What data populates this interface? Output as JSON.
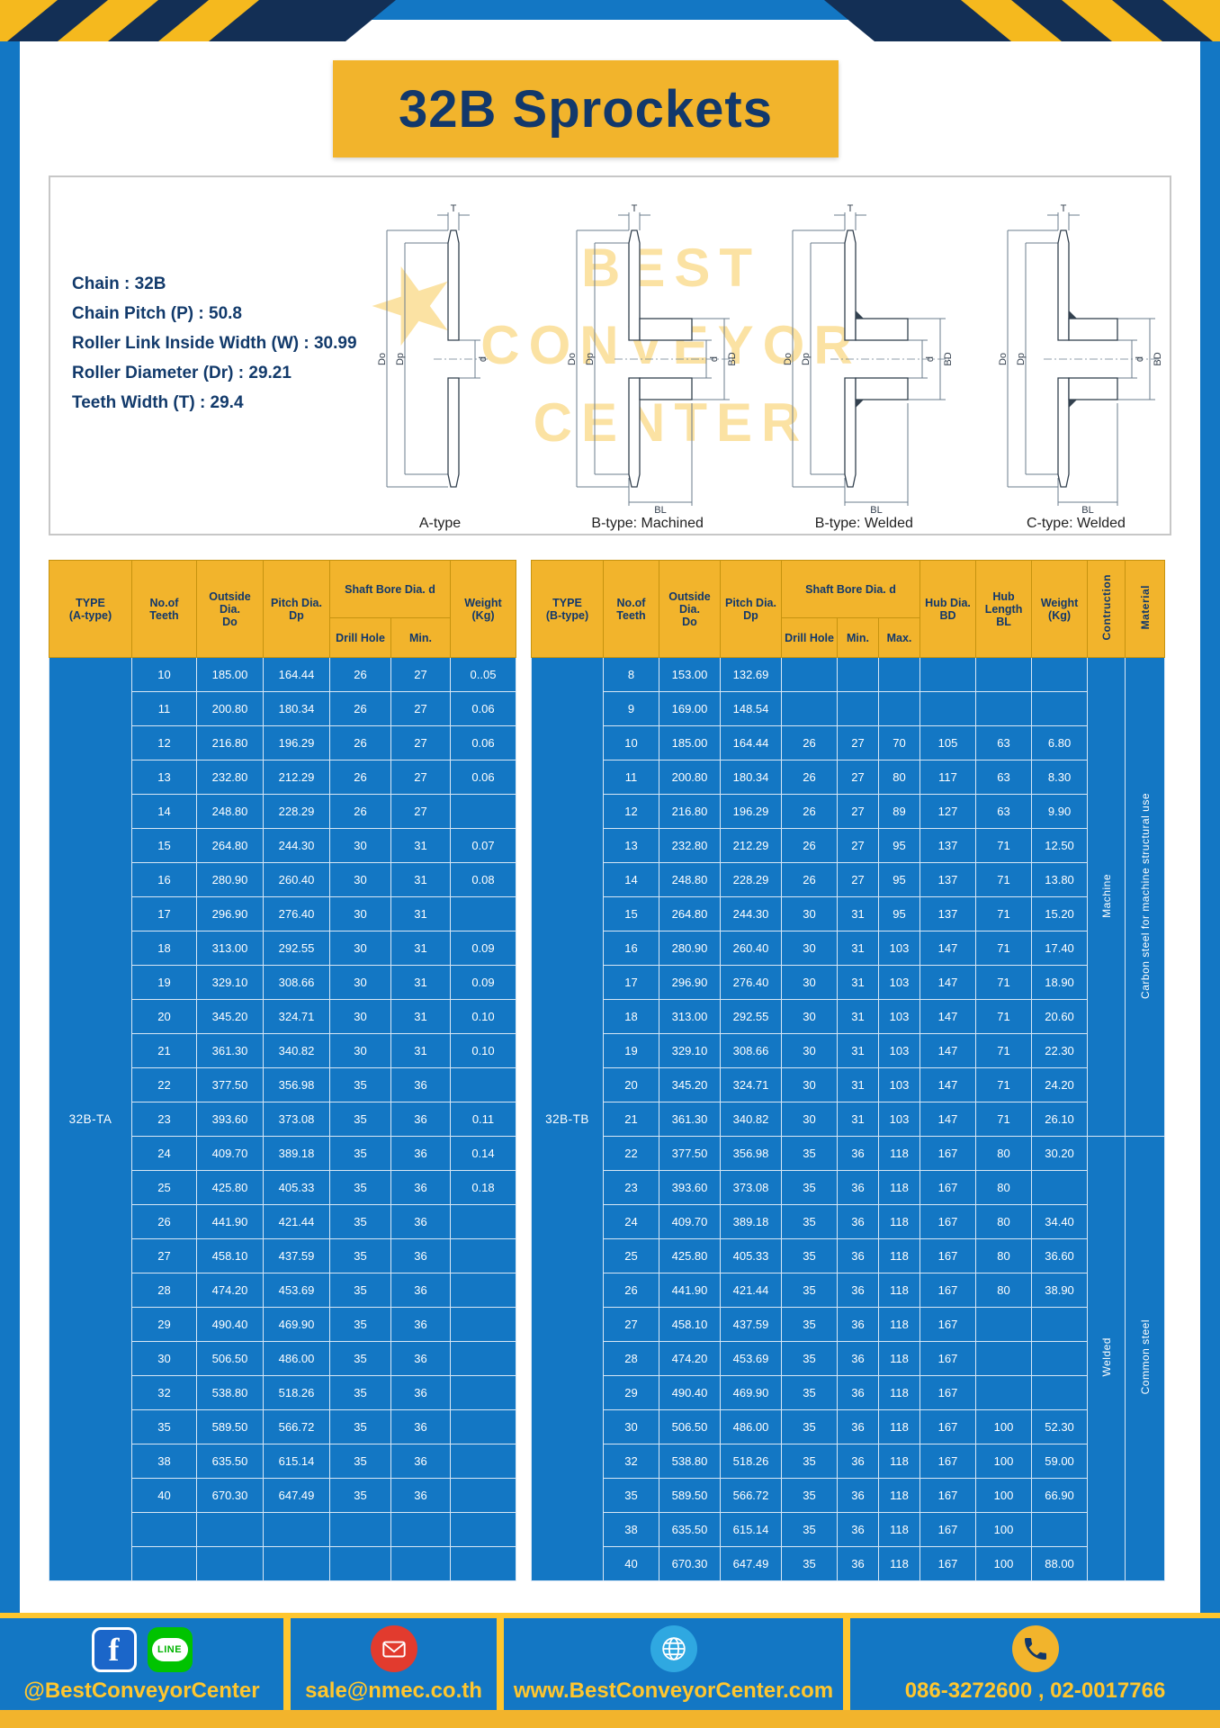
{
  "page": {
    "title": "32B Sprockets"
  },
  "specs": {
    "lines": [
      "Chain : 32B",
      "Chain Pitch (P) : 50.8",
      "Roller Link Inside Width (W) : 30.99",
      "Roller Diameter (Dr) : 29.21",
      "Teeth Width (T) : 29.4"
    ]
  },
  "watermark": {
    "star": "★",
    "line1": "BEST",
    "line2": "CONVEYOR",
    "line3": "CENTER"
  },
  "dim_labels": {
    "T": "T",
    "Do": "Do",
    "Dp": "Dp",
    "d": "d",
    "BD": "BD",
    "BL": "BL"
  },
  "diagrams": {
    "captions": [
      "A-type",
      "B-type: Machined",
      "B-type: Welded",
      "C-type: Welded"
    ]
  },
  "table_a": {
    "headers": {
      "type": "TYPE\n(A-type)",
      "teeth": "No.of\nTeeth",
      "outside": "Outside\nDia.\nDo",
      "pitch": "Pitch Dia.\nDp",
      "shaft": "Shaft Bore Dia. d",
      "drill": "Drill Hole",
      "min": "Min.",
      "weight": "Weight\n(Kg)"
    },
    "type_label": "32B-TA",
    "rows": [
      [
        "10",
        "185.00",
        "164.44",
        "26",
        "27",
        "0..05"
      ],
      [
        "11",
        "200.80",
        "180.34",
        "26",
        "27",
        "0.06"
      ],
      [
        "12",
        "216.80",
        "196.29",
        "26",
        "27",
        "0.06"
      ],
      [
        "13",
        "232.80",
        "212.29",
        "26",
        "27",
        "0.06"
      ],
      [
        "14",
        "248.80",
        "228.29",
        "26",
        "27",
        ""
      ],
      [
        "15",
        "264.80",
        "244.30",
        "30",
        "31",
        "0.07"
      ],
      [
        "16",
        "280.90",
        "260.40",
        "30",
        "31",
        "0.08"
      ],
      [
        "17",
        "296.90",
        "276.40",
        "30",
        "31",
        ""
      ],
      [
        "18",
        "313.00",
        "292.55",
        "30",
        "31",
        "0.09"
      ],
      [
        "19",
        "329.10",
        "308.66",
        "30",
        "31",
        "0.09"
      ],
      [
        "20",
        "345.20",
        "324.71",
        "30",
        "31",
        "0.10"
      ],
      [
        "21",
        "361.30",
        "340.82",
        "30",
        "31",
        "0.10"
      ],
      [
        "22",
        "377.50",
        "356.98",
        "35",
        "36",
        ""
      ],
      [
        "23",
        "393.60",
        "373.08",
        "35",
        "36",
        "0.11"
      ],
      [
        "24",
        "409.70",
        "389.18",
        "35",
        "36",
        "0.14"
      ],
      [
        "25",
        "425.80",
        "405.33",
        "35",
        "36",
        "0.18"
      ],
      [
        "26",
        "441.90",
        "421.44",
        "35",
        "36",
        ""
      ],
      [
        "27",
        "458.10",
        "437.59",
        "35",
        "36",
        ""
      ],
      [
        "28",
        "474.20",
        "453.69",
        "35",
        "36",
        ""
      ],
      [
        "29",
        "490.40",
        "469.90",
        "35",
        "36",
        ""
      ],
      [
        "30",
        "506.50",
        "486.00",
        "35",
        "36",
        ""
      ],
      [
        "32",
        "538.80",
        "518.26",
        "35",
        "36",
        ""
      ],
      [
        "35",
        "589.50",
        "566.72",
        "35",
        "36",
        ""
      ],
      [
        "38",
        "635.50",
        "615.14",
        "35",
        "36",
        ""
      ],
      [
        "40",
        "670.30",
        "647.49",
        "35",
        "36",
        ""
      ],
      [
        "",
        "",
        "",
        "",
        "",
        ""
      ],
      [
        "",
        "",
        "",
        "",
        "",
        ""
      ]
    ],
    "side_cells": []
  },
  "table_b": {
    "headers": {
      "type": "TYPE\n(B-type)",
      "teeth": "No.of\nTeeth",
      "outside": "Outside\nDia.\nDo",
      "pitch": "Pitch Dia.\nDp",
      "shaft": "Shaft Bore Dia. d",
      "drill": "Drill Hole",
      "min": "Min.",
      "max": "Max.",
      "hub_dia": "Hub Dia.\nBD",
      "hub_len": "Hub\nLength\nBL",
      "weight": "Weight\n(Kg)",
      "construction": "Contruction",
      "material": "Material"
    },
    "type_label": "32B-TB",
    "rows": [
      [
        "8",
        "153.00",
        "132.69",
        "",
        "",
        "",
        "",
        "",
        ""
      ],
      [
        "9",
        "169.00",
        "148.54",
        "",
        "",
        "",
        "",
        "",
        ""
      ],
      [
        "10",
        "185.00",
        "164.44",
        "26",
        "27",
        "70",
        "105",
        "63",
        "6.80"
      ],
      [
        "11",
        "200.80",
        "180.34",
        "26",
        "27",
        "80",
        "117",
        "63",
        "8.30"
      ],
      [
        "12",
        "216.80",
        "196.29",
        "26",
        "27",
        "89",
        "127",
        "63",
        "9.90"
      ],
      [
        "13",
        "232.80",
        "212.29",
        "26",
        "27",
        "95",
        "137",
        "71",
        "12.50"
      ],
      [
        "14",
        "248.80",
        "228.29",
        "26",
        "27",
        "95",
        "137",
        "71",
        "13.80"
      ],
      [
        "15",
        "264.80",
        "244.30",
        "30",
        "31",
        "95",
        "137",
        "71",
        "15.20"
      ],
      [
        "16",
        "280.90",
        "260.40",
        "30",
        "31",
        "103",
        "147",
        "71",
        "17.40"
      ],
      [
        "17",
        "296.90",
        "276.40",
        "30",
        "31",
        "103",
        "147",
        "71",
        "18.90"
      ],
      [
        "18",
        "313.00",
        "292.55",
        "30",
        "31",
        "103",
        "147",
        "71",
        "20.60"
      ],
      [
        "19",
        "329.10",
        "308.66",
        "30",
        "31",
        "103",
        "147",
        "71",
        "22.30"
      ],
      [
        "20",
        "345.20",
        "324.71",
        "30",
        "31",
        "103",
        "147",
        "71",
        "24.20"
      ],
      [
        "21",
        "361.30",
        "340.82",
        "30",
        "31",
        "103",
        "147",
        "71",
        "26.10"
      ],
      [
        "22",
        "377.50",
        "356.98",
        "35",
        "36",
        "118",
        "167",
        "80",
        "30.20"
      ],
      [
        "23",
        "393.60",
        "373.08",
        "35",
        "36",
        "118",
        "167",
        "80",
        ""
      ],
      [
        "24",
        "409.70",
        "389.18",
        "35",
        "36",
        "118",
        "167",
        "80",
        "34.40"
      ],
      [
        "25",
        "425.80",
        "405.33",
        "35",
        "36",
        "118",
        "167",
        "80",
        "36.60"
      ],
      [
        "26",
        "441.90",
        "421.44",
        "35",
        "36",
        "118",
        "167",
        "80",
        "38.90"
      ],
      [
        "27",
        "458.10",
        "437.59",
        "35",
        "36",
        "118",
        "167",
        "",
        ""
      ],
      [
        "28",
        "474.20",
        "453.69",
        "35",
        "36",
        "118",
        "167",
        "",
        ""
      ],
      [
        "29",
        "490.40",
        "469.90",
        "35",
        "36",
        "118",
        "167",
        "",
        ""
      ],
      [
        "30",
        "506.50",
        "486.00",
        "35",
        "36",
        "118",
        "167",
        "100",
        "52.30"
      ],
      [
        "32",
        "538.80",
        "518.26",
        "35",
        "36",
        "118",
        "167",
        "100",
        "59.00"
      ],
      [
        "35",
        "589.50",
        "566.72",
        "35",
        "36",
        "118",
        "167",
        "100",
        "66.90"
      ],
      [
        "38",
        "635.50",
        "615.14",
        "35",
        "36",
        "118",
        "167",
        "100",
        ""
      ],
      [
        "40",
        "670.30",
        "647.49",
        "35",
        "36",
        "118",
        "167",
        "100",
        "88.00"
      ]
    ],
    "side_cells": [
      {
        "name": "construction-machine-cell",
        "text": "Machine",
        "from": 0,
        "span": 14
      },
      {
        "name": "material-carbon-steel-cell",
        "text": "Carbon steel for machine structural use",
        "from": 0,
        "span": 14
      },
      {
        "name": "construction-welded-cell",
        "text": "Welded",
        "from": 14,
        "span": 13
      },
      {
        "name": "material-common-steel-cell",
        "text": "Common steel",
        "from": 14,
        "span": 13
      }
    ]
  },
  "footer": {
    "facebook_f": "f",
    "line_label": "LINE",
    "social_text": "@BestConveyorCenter",
    "email": "sale@nmec.co.th",
    "website": "www.BestConveyorCenter.com",
    "phones": "086-3272600 , 02-0017766"
  }
}
